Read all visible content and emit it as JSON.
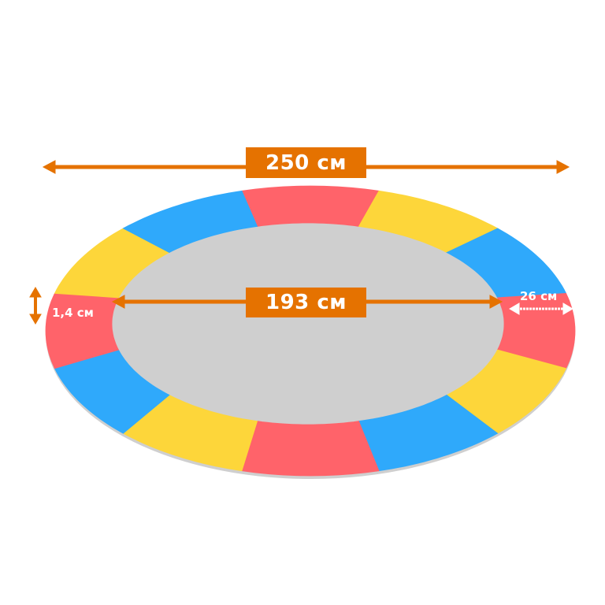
{
  "dimensions": {
    "outer_diameter": "250 см",
    "inner_diameter": "193 см",
    "thickness": "1,4 см",
    "width": "26 см"
  },
  "colors": {
    "accent": "#e57200",
    "segments": [
      "#ff636a",
      "#fdd63a",
      "#2fa9fb",
      "#ff636a",
      "#fdd63a",
      "#2fa9fb",
      "#ff636a",
      "#fdd63a",
      "#2fa9fb",
      "#ff636a",
      "#fdd63a",
      "#2fa9fb"
    ]
  }
}
